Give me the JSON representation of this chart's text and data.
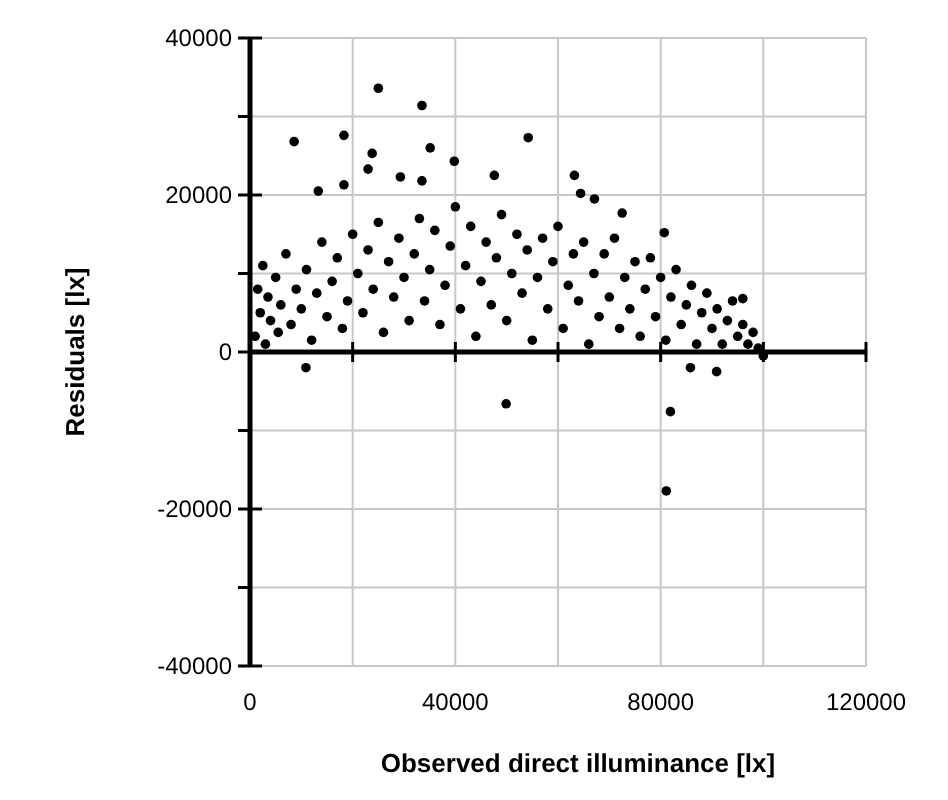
{
  "chart_data": {
    "type": "scatter",
    "xlabel": "Observed direct illuminance [lx]",
    "ylabel": "Residuals [lx]",
    "xlim": [
      0,
      120000
    ],
    "ylim": [
      -40000,
      40000
    ],
    "xticks": [
      0,
      {
        "value": 20000,
        "label": null
      },
      40000,
      {
        "value": 60000,
        "label": null
      },
      80000,
      {
        "value": 100000,
        "label": null
      },
      120000
    ],
    "yticks": [
      -40000,
      {
        "value": -30000,
        "label": null
      },
      -20000,
      {
        "value": -10000,
        "label": null
      },
      0,
      {
        "value": 10000,
        "label": null
      },
      20000,
      {
        "value": 30000,
        "label": null
      },
      40000
    ],
    "grid": true,
    "marker": "circle",
    "series": [
      {
        "color": "#000000",
        "x": [
          1000,
          1500,
          2000,
          2500,
          3000,
          3500,
          4000,
          5000,
          5500,
          6000,
          7000,
          8000,
          9000,
          10000,
          11000,
          12000,
          13000,
          14000,
          15000,
          16000,
          17000,
          18000,
          19000,
          20000,
          21000,
          22000,
          23000,
          24000,
          25000,
          26000,
          27000,
          28000,
          29000,
          30000,
          31000,
          32000,
          33000,
          34000,
          35000,
          36000,
          37000,
          38000,
          39000,
          40000,
          41000,
          42000,
          43000,
          44000,
          45000,
          46000,
          47000,
          48000,
          49000,
          50000,
          51000,
          52000,
          53000,
          54000,
          55000,
          56000,
          57000,
          58000,
          59000,
          60000,
          61000,
          62000,
          63000,
          64000,
          65000,
          66000,
          67000,
          68000,
          69000,
          70000,
          71000,
          72000,
          73000,
          74000,
          75000,
          76000,
          77000,
          78000,
          79000,
          80000,
          81000,
          82000,
          83000,
          84000,
          85000,
          86000,
          87000,
          88000,
          89000,
          90000,
          91000,
          92000,
          93000,
          94000,
          95000,
          96000,
          97000,
          98000,
          99000,
          100000,
          25000,
          33500,
          8600,
          18300,
          54200,
          35100,
          23800,
          39800,
          23000,
          29300,
          33500,
          47600,
          63200,
          13300,
          18300,
          64400,
          67100,
          72500,
          80700,
          96000,
          10900,
          85800,
          90900,
          49900,
          81900,
          81100
        ],
        "values": [
          2000,
          8000,
          5000,
          11000,
          1000,
          7000,
          4000,
          9500,
          2500,
          6000,
          12500,
          3500,
          8000,
          5500,
          10500,
          1500,
          7500,
          14000,
          4500,
          9000,
          12000,
          3000,
          6500,
          15000,
          10000,
          5000,
          13000,
          8000,
          16500,
          2500,
          11500,
          7000,
          14500,
          9500,
          4000,
          12500,
          17000,
          6500,
          10500,
          15500,
          3500,
          8500,
          13500,
          18500,
          5500,
          11000,
          16000,
          2000,
          9000,
          14000,
          6000,
          12000,
          17500,
          4000,
          10000,
          15000,
          7500,
          13000,
          1500,
          9500,
          14500,
          5500,
          11500,
          16000,
          3000,
          8500,
          12500,
          6500,
          14000,
          1000,
          10000,
          4500,
          12500,
          7000,
          14500,
          3000,
          9500,
          5500,
          11500,
          2000,
          8000,
          12000,
          4500,
          9500,
          1500,
          7000,
          10500,
          3500,
          6000,
          8500,
          1000,
          5000,
          7500,
          3000,
          5500,
          1000,
          4000,
          6500,
          2000,
          3500,
          1000,
          2500,
          500,
          -500,
          33600,
          31400,
          26800,
          27600,
          27300,
          26000,
          25300,
          24300,
          23300,
          22300,
          21800,
          22500,
          22500,
          20500,
          21300,
          20200,
          19500,
          17700,
          15200,
          6800,
          -2000,
          -2000,
          -2500,
          -6600,
          -7600,
          -17700
        ]
      }
    ]
  }
}
